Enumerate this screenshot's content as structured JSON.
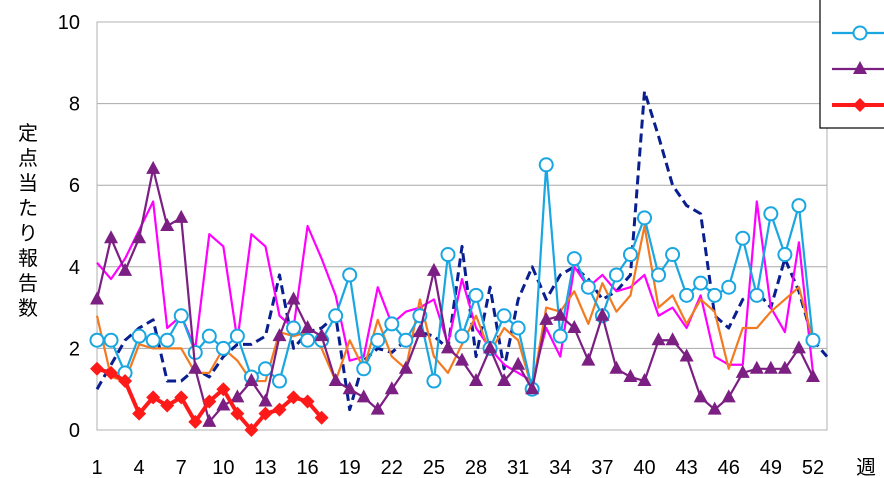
{
  "chart_data": {
    "type": "line",
    "title": "",
    "xlabel": "週",
    "ylabel": "定点当たり報告数",
    "ylim": [
      0,
      10
    ],
    "yticks": [
      0,
      2,
      4,
      6,
      8,
      10
    ],
    "xlim": [
      1,
      53
    ],
    "xticks": [
      1,
      4,
      7,
      10,
      13,
      16,
      19,
      22,
      25,
      28,
      31,
      34,
      37,
      40,
      43,
      46,
      49,
      52
    ],
    "grid": true,
    "legend_position": "top-right",
    "series": [
      {
        "color": "#0a1f8f",
        "style": "dashed",
        "marker": "none",
        "x": [
          1,
          2,
          3,
          4,
          5,
          6,
          7,
          8,
          9,
          10,
          11,
          12,
          13,
          14,
          15,
          16,
          17,
          18,
          19,
          20,
          21,
          22,
          23,
          24,
          25,
          26,
          27,
          28,
          29,
          30,
          31,
          32,
          33,
          34,
          35,
          36,
          37,
          38,
          39,
          40,
          41,
          42,
          43,
          44,
          45,
          46,
          47,
          48,
          49,
          50,
          51,
          52,
          53
        ],
        "y": [
          1.0,
          1.6,
          2.2,
          2.5,
          2.7,
          1.2,
          1.2,
          1.5,
          1.3,
          1.8,
          2.1,
          2.1,
          2.3,
          3.8,
          2.0,
          2.4,
          2.5,
          2.8,
          0.5,
          1.7,
          2.0,
          1.9,
          2.2,
          2.4,
          2.3,
          2.0,
          4.5,
          1.8,
          3.5,
          1.5,
          3.2,
          4.0,
          3.2,
          3.8,
          4.0,
          3.7,
          3.2,
          3.4,
          3.8,
          8.3,
          7.2,
          6.0,
          5.5,
          5.3,
          2.8,
          2.5,
          3.2,
          3.4,
          3.0,
          4.2,
          3.4,
          2.2,
          1.8
        ]
      },
      {
        "color": "#ff00ff",
        "style": "solid",
        "marker": "none",
        "x": [
          1,
          2,
          3,
          4,
          5,
          6,
          7,
          8,
          9,
          10,
          11,
          12,
          13,
          14,
          15,
          16,
          17,
          18,
          19,
          20,
          21,
          22,
          23,
          24,
          25,
          26,
          27,
          28,
          29,
          30,
          31,
          32,
          33,
          34,
          35,
          36,
          37,
          38,
          39,
          40,
          41,
          42,
          43,
          44,
          45,
          46,
          47,
          48,
          49,
          50,
          51,
          52
        ],
        "y": [
          4.1,
          3.7,
          4.2,
          4.9,
          5.6,
          2.5,
          2.8,
          2.0,
          4.8,
          4.5,
          2.2,
          4.8,
          4.5,
          2.8,
          2.5,
          5.0,
          4.2,
          3.3,
          1.7,
          1.8,
          3.5,
          2.6,
          2.9,
          3.0,
          3.2,
          2.1,
          3.7,
          2.5,
          2.0,
          1.6,
          1.4,
          1.2,
          2.5,
          1.8,
          4.0,
          3.5,
          3.8,
          3.4,
          3.5,
          3.8,
          2.8,
          3.0,
          2.5,
          3.3,
          1.8,
          1.6,
          1.6,
          5.6,
          3.0,
          2.4,
          4.6,
          1.4
        ]
      },
      {
        "color": "#f47a20",
        "style": "solid",
        "marker": "none",
        "x": [
          1,
          2,
          3,
          4,
          5,
          6,
          7,
          8,
          9,
          10,
          11,
          12,
          13,
          14,
          15,
          16,
          17,
          18,
          19,
          20,
          21,
          22,
          23,
          24,
          25,
          26,
          27,
          28,
          29,
          30,
          31,
          32,
          33,
          34,
          35,
          36,
          37,
          38,
          39,
          40,
          41,
          42,
          43,
          44,
          45,
          46,
          47,
          48,
          49,
          50,
          51,
          52
        ],
        "y": [
          2.8,
          1.3,
          1.2,
          2.1,
          2.0,
          2.0,
          2.0,
          1.4,
          1.4,
          2.0,
          1.7,
          1.2,
          1.2,
          2.4,
          2.3,
          2.4,
          2.0,
          1.2,
          2.2,
          1.5,
          2.7,
          1.8,
          1.5,
          3.2,
          1.8,
          1.4,
          2.1,
          2.8,
          1.9,
          2.5,
          2.2,
          1.0,
          3.0,
          2.9,
          3.4,
          2.6,
          3.6,
          2.9,
          3.3,
          5.0,
          3.0,
          3.3,
          2.6,
          3.2,
          2.9,
          1.5,
          2.5,
          2.5,
          2.9,
          3.2,
          3.5,
          2.2
        ]
      },
      {
        "name": "",
        "color": "#1aa6e0",
        "style": "solid",
        "marker": "circle",
        "x": [
          1,
          2,
          3,
          4,
          5,
          6,
          7,
          8,
          9,
          10,
          11,
          12,
          13,
          14,
          15,
          16,
          17,
          18,
          19,
          20,
          21,
          22,
          23,
          24,
          25,
          26,
          27,
          28,
          29,
          30,
          31,
          32,
          33,
          34,
          35,
          36,
          37,
          38,
          39,
          40,
          41,
          42,
          43,
          44,
          45,
          46,
          47,
          48,
          49,
          50,
          51,
          52
        ],
        "y": [
          2.2,
          2.2,
          1.4,
          2.3,
          2.2,
          2.2,
          2.8,
          1.9,
          2.3,
          2.0,
          2.3,
          1.3,
          1.5,
          1.2,
          2.5,
          2.2,
          2.2,
          2.8,
          3.8,
          1.5,
          2.2,
          2.6,
          2.2,
          2.8,
          1.2,
          4.3,
          2.3,
          3.3,
          2.0,
          2.8,
          2.5,
          1.0,
          6.5,
          2.3,
          4.2,
          3.5,
          2.8,
          3.8,
          4.3,
          5.2,
          3.8,
          4.3,
          3.3,
          3.6,
          3.3,
          3.5,
          4.7,
          3.3,
          5.3,
          4.3,
          5.5,
          2.2
        ]
      },
      {
        "name": "",
        "color": "#7b1f83",
        "style": "solid",
        "marker": "triangle",
        "x": [
          1,
          2,
          3,
          4,
          5,
          6,
          7,
          8,
          9,
          10,
          11,
          12,
          13,
          14,
          15,
          16,
          17,
          18,
          19,
          20,
          21,
          22,
          23,
          24,
          25,
          26,
          27,
          28,
          29,
          30,
          31,
          32,
          33,
          34,
          35,
          36,
          37,
          38,
          39,
          40,
          41,
          42,
          43,
          44,
          45,
          46,
          47,
          48,
          49,
          50,
          51,
          52
        ],
        "y": [
          3.2,
          4.7,
          3.9,
          4.7,
          6.4,
          5.0,
          5.2,
          1.5,
          0.2,
          0.6,
          0.8,
          1.2,
          0.7,
          2.3,
          3.2,
          2.5,
          2.3,
          1.2,
          1.0,
          0.8,
          0.5,
          1.0,
          1.5,
          2.4,
          3.9,
          2.0,
          1.7,
          1.2,
          2.0,
          1.2,
          1.6,
          1.0,
          2.7,
          2.8,
          2.5,
          1.7,
          2.8,
          1.5,
          1.3,
          1.2,
          2.2,
          2.2,
          1.8,
          0.8,
          0.5,
          0.8,
          1.4,
          1.5,
          1.5,
          1.5,
          2.0,
          1.3
        ]
      },
      {
        "name": "",
        "color": "#ff1a1a",
        "style": "solid",
        "marker": "diamond",
        "x": [
          1,
          2,
          3,
          4,
          5,
          6,
          7,
          8,
          9,
          10,
          11,
          12,
          13,
          14,
          15,
          16,
          17
        ],
        "y": [
          1.5,
          1.4,
          1.2,
          0.4,
          0.8,
          0.6,
          0.8,
          0.2,
          0.7,
          1.0,
          0.4,
          0.0,
          0.4,
          0.5,
          0.8,
          0.7,
          0.3
        ]
      }
    ]
  }
}
